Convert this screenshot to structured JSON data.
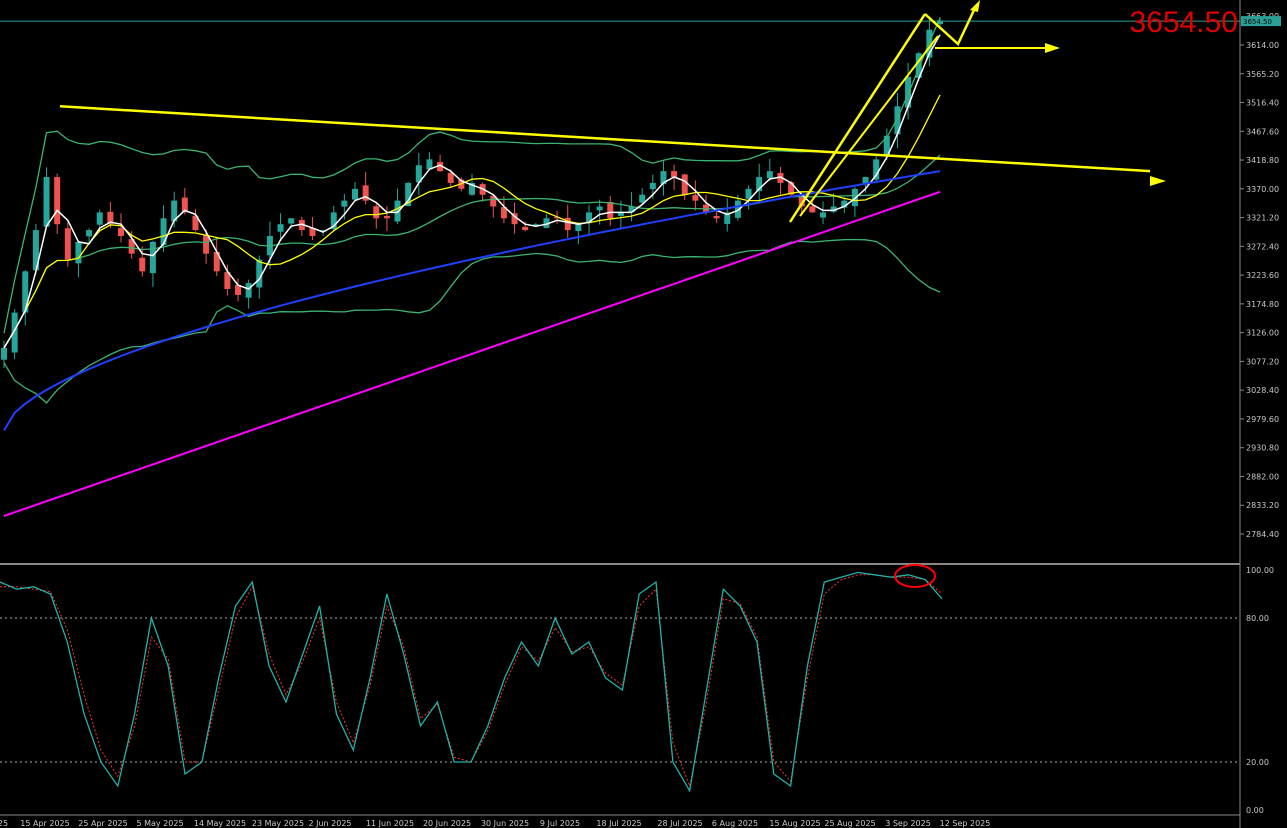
{
  "chart_data": [
    {
      "type": "candlestick",
      "title": "",
      "last_price_label": "3654.50",
      "last_price": 3654.5,
      "price_tag": "3654.50",
      "top_tick": "3663.00",
      "y_ticks": [
        "3614.00",
        "3565.20",
        "3516.40",
        "3467.60",
        "3418.80",
        "3370.00",
        "3321.20",
        "3272.40",
        "3223.60",
        "3174.80",
        "3126.00",
        "3077.20",
        "3028.40",
        "2979.60",
        "2930.80",
        "2882.00",
        "2833.20",
        "2784.40"
      ],
      "ylim": [
        2760,
        3690
      ],
      "x_ticks": [
        "25",
        "15 Apr 2025",
        "25 Apr 2025",
        "5 May 2025",
        "14 May 2025",
        "23 May 2025",
        "2 Jun 2025",
        "11 Jun 2025",
        "20 Jun 2025",
        "30 Jun 2025",
        "9 Jul 2025",
        "18 Jul 2025",
        "28 Jul 2025",
        "6 Aug 2025",
        "15 Aug 2025",
        "25 Aug 2025",
        "3 Sep 2025",
        "12 Sep 2025"
      ],
      "close_series": [
        3100,
        3160,
        3230,
        3300,
        3390,
        3310,
        3250,
        3280,
        3300,
        3330,
        3310,
        3290,
        3260,
        3230,
        3280,
        3320,
        3350,
        3330,
        3300,
        3260,
        3230,
        3200,
        3190,
        3210,
        3250,
        3290,
        3310,
        3320,
        3300,
        3290,
        3300,
        3330,
        3350,
        3370,
        3350,
        3320,
        3320,
        3350,
        3380,
        3410,
        3420,
        3400,
        3380,
        3370,
        3380,
        3360,
        3340,
        3320,
        3310,
        3300,
        3310,
        3320,
        3320,
        3300,
        3310,
        3330,
        3340,
        3320,
        3330,
        3340,
        3360,
        3380,
        3400,
        3390,
        3360,
        3350,
        3330,
        3320,
        3330,
        3350,
        3370,
        3390,
        3400,
        3380,
        3360,
        3340,
        3330,
        3330,
        3340,
        3350,
        3370,
        3390,
        3420,
        3460,
        3510,
        3560,
        3600,
        3640,
        3654.5
      ],
      "colors": {
        "bull": "#26a69a",
        "bear": "#ef5350",
        "bollinger": "#3cb371",
        "ma_fast": "#ffffff",
        "ma_mid": "#ffff00",
        "ma_blue": "#2040ff",
        "ma_magenta": "#ff00ff",
        "annotation": "#ffff00",
        "price_line": "#2aa198"
      },
      "annotations": [
        "descending trendline",
        "rising channel",
        "breakout arrows"
      ]
    },
    {
      "type": "line",
      "title": "",
      "ylim": [
        0,
        100
      ],
      "y_ticks": [
        "100.00",
        "80.00",
        "20.00",
        "0.00"
      ],
      "levels": [
        80,
        20
      ],
      "series": [
        {
          "values": [
            95,
            92,
            93,
            90,
            70,
            40,
            20,
            10,
            40,
            80,
            60,
            15,
            20,
            55,
            85,
            95,
            60,
            45,
            65,
            85,
            40,
            25,
            55,
            90,
            65,
            35,
            45,
            20,
            20,
            35,
            55,
            70,
            60,
            80,
            65,
            70,
            55,
            50,
            90,
            95,
            20,
            8,
            50,
            92,
            85,
            70,
            15,
            10,
            60,
            95,
            97,
            99,
            98,
            97,
            98,
            96,
            88
          ]
        },
        {
          "values": [
            93,
            93,
            92,
            91,
            75,
            48,
            25,
            14,
            35,
            72,
            63,
            20,
            20,
            50,
            80,
            93,
            65,
            48,
            62,
            80,
            45,
            28,
            52,
            85,
            68,
            38,
            44,
            22,
            20,
            33,
            52,
            68,
            62,
            76,
            66,
            68,
            57,
            52,
            85,
            92,
            28,
            10,
            45,
            88,
            86,
            72,
            20,
            12,
            55,
            90,
            96,
            98,
            98,
            97,
            97,
            96,
            90
          ]
        }
      ],
      "colors": {
        "main": "#20b2aa",
        "signal": "#ff3030",
        "circle": "#ff0000"
      }
    }
  ]
}
